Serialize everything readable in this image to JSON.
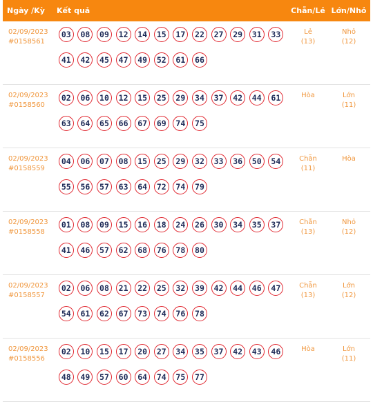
{
  "header": {
    "date": "Ngày /Kỳ",
    "result": "Kết quả",
    "odd_even": "Chẵn/Lẻ",
    "big_small": "Lớn/Nhỏ"
  },
  "rows": [
    {
      "date": "02/09/2023",
      "ky": "#0158561",
      "numbers": [
        "03",
        "08",
        "09",
        "12",
        "14",
        "15",
        "17",
        "22",
        "27",
        "29",
        "31",
        "33",
        "41",
        "42",
        "45",
        "47",
        "49",
        "52",
        "61",
        "66"
      ],
      "odd_even": "Lẻ",
      "odd_even_count": "(13)",
      "big_small": "Nhỏ",
      "big_small_count": "(12)"
    },
    {
      "date": "02/09/2023",
      "ky": "#0158560",
      "numbers": [
        "02",
        "06",
        "10",
        "12",
        "15",
        "25",
        "29",
        "34",
        "37",
        "42",
        "44",
        "61",
        "63",
        "64",
        "65",
        "66",
        "67",
        "69",
        "74",
        "75"
      ],
      "odd_even": "Hòa",
      "odd_even_count": "",
      "big_small": "Lớn",
      "big_small_count": "(11)"
    },
    {
      "date": "02/09/2023",
      "ky": "#0158559",
      "numbers": [
        "04",
        "06",
        "07",
        "08",
        "15",
        "25",
        "29",
        "32",
        "33",
        "36",
        "50",
        "54",
        "55",
        "56",
        "57",
        "63",
        "64",
        "72",
        "74",
        "79"
      ],
      "odd_even": "Chẵn",
      "odd_even_count": "(11)",
      "big_small": "Hòa",
      "big_small_count": ""
    },
    {
      "date": "02/09/2023",
      "ky": "#0158558",
      "numbers": [
        "01",
        "08",
        "09",
        "15",
        "16",
        "18",
        "24",
        "26",
        "30",
        "34",
        "35",
        "37",
        "41",
        "46",
        "57",
        "62",
        "68",
        "76",
        "78",
        "80"
      ],
      "odd_even": "Chẵn",
      "odd_even_count": "(13)",
      "big_small": "Nhỏ",
      "big_small_count": "(12)"
    },
    {
      "date": "02/09/2023",
      "ky": "#0158557",
      "numbers": [
        "02",
        "06",
        "08",
        "21",
        "22",
        "25",
        "32",
        "39",
        "42",
        "44",
        "46",
        "47",
        "54",
        "61",
        "62",
        "67",
        "73",
        "74",
        "76",
        "78"
      ],
      "odd_even": "Chẵn",
      "odd_even_count": "(13)",
      "big_small": "Lớn",
      "big_small_count": "(12)"
    },
    {
      "date": "02/09/2023",
      "ky": "#0158556",
      "numbers": [
        "02",
        "10",
        "15",
        "17",
        "20",
        "27",
        "34",
        "35",
        "37",
        "42",
        "43",
        "46",
        "48",
        "49",
        "57",
        "60",
        "64",
        "74",
        "75",
        "77"
      ],
      "odd_even": "Hòa",
      "odd_even_count": "",
      "big_small": "Lớn",
      "big_small_count": "(11)"
    }
  ]
}
